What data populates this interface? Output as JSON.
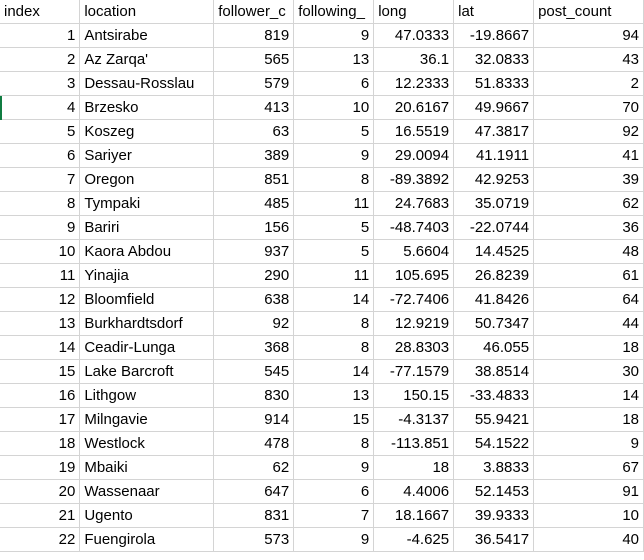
{
  "headers": [
    "index",
    "location",
    "follower_c",
    "following_",
    "long",
    "lat",
    "post_count"
  ],
  "rows": [
    [
      "1",
      "Antsirabe",
      "819",
      "9",
      "47.0333",
      "-19.8667",
      "94"
    ],
    [
      "2",
      "Az Zarqa'",
      "565",
      "13",
      "36.1",
      "32.0833",
      "43"
    ],
    [
      "3",
      "Dessau-Rosslau",
      "579",
      "6",
      "12.2333",
      "51.8333",
      "2"
    ],
    [
      "4",
      "Brzesko",
      "413",
      "10",
      "20.6167",
      "49.9667",
      "70"
    ],
    [
      "5",
      "Koszeg",
      "63",
      "5",
      "16.5519",
      "47.3817",
      "92"
    ],
    [
      "6",
      "Sariyer",
      "389",
      "9",
      "29.0094",
      "41.1911",
      "41"
    ],
    [
      "7",
      "Oregon",
      "851",
      "8",
      "-89.3892",
      "42.9253",
      "39"
    ],
    [
      "8",
      "Tympaki",
      "485",
      "11",
      "24.7683",
      "35.0719",
      "62"
    ],
    [
      "9",
      "Bariri",
      "156",
      "5",
      "-48.7403",
      "-22.0744",
      "36"
    ],
    [
      "10",
      "Kaora Abdou",
      "937",
      "5",
      "5.6604",
      "14.4525",
      "48"
    ],
    [
      "11",
      "Yinajia",
      "290",
      "11",
      "105.695",
      "26.8239",
      "61"
    ],
    [
      "12",
      "Bloomfield",
      "638",
      "14",
      "-72.7406",
      "41.8426",
      "64"
    ],
    [
      "13",
      "Burkhardtsdorf",
      "92",
      "8",
      "12.9219",
      "50.7347",
      "44"
    ],
    [
      "14",
      "Ceadir-Lunga",
      "368",
      "8",
      "28.8303",
      "46.055",
      "18"
    ],
    [
      "15",
      "Lake Barcroft",
      "545",
      "14",
      "-77.1579",
      "38.8514",
      "30"
    ],
    [
      "16",
      "Lithgow",
      "830",
      "13",
      "150.15",
      "-33.4833",
      "14"
    ],
    [
      "17",
      "Milngavie",
      "914",
      "15",
      "-4.3137",
      "55.9421",
      "18"
    ],
    [
      "18",
      "Westlock",
      "478",
      "8",
      "-113.851",
      "54.1522",
      "9"
    ],
    [
      "19",
      "Mbaiki",
      "62",
      "9",
      "18",
      "3.8833",
      "67"
    ],
    [
      "20",
      "Wassenaar",
      "647",
      "6",
      "4.4006",
      "52.1453",
      "91"
    ],
    [
      "21",
      "Ugento",
      "831",
      "7",
      "18.1667",
      "39.9333",
      "10"
    ],
    [
      "22",
      "Fuengirola",
      "573",
      "9",
      "-4.625",
      "36.5417",
      "40"
    ]
  ],
  "accent_color": "#107c41"
}
